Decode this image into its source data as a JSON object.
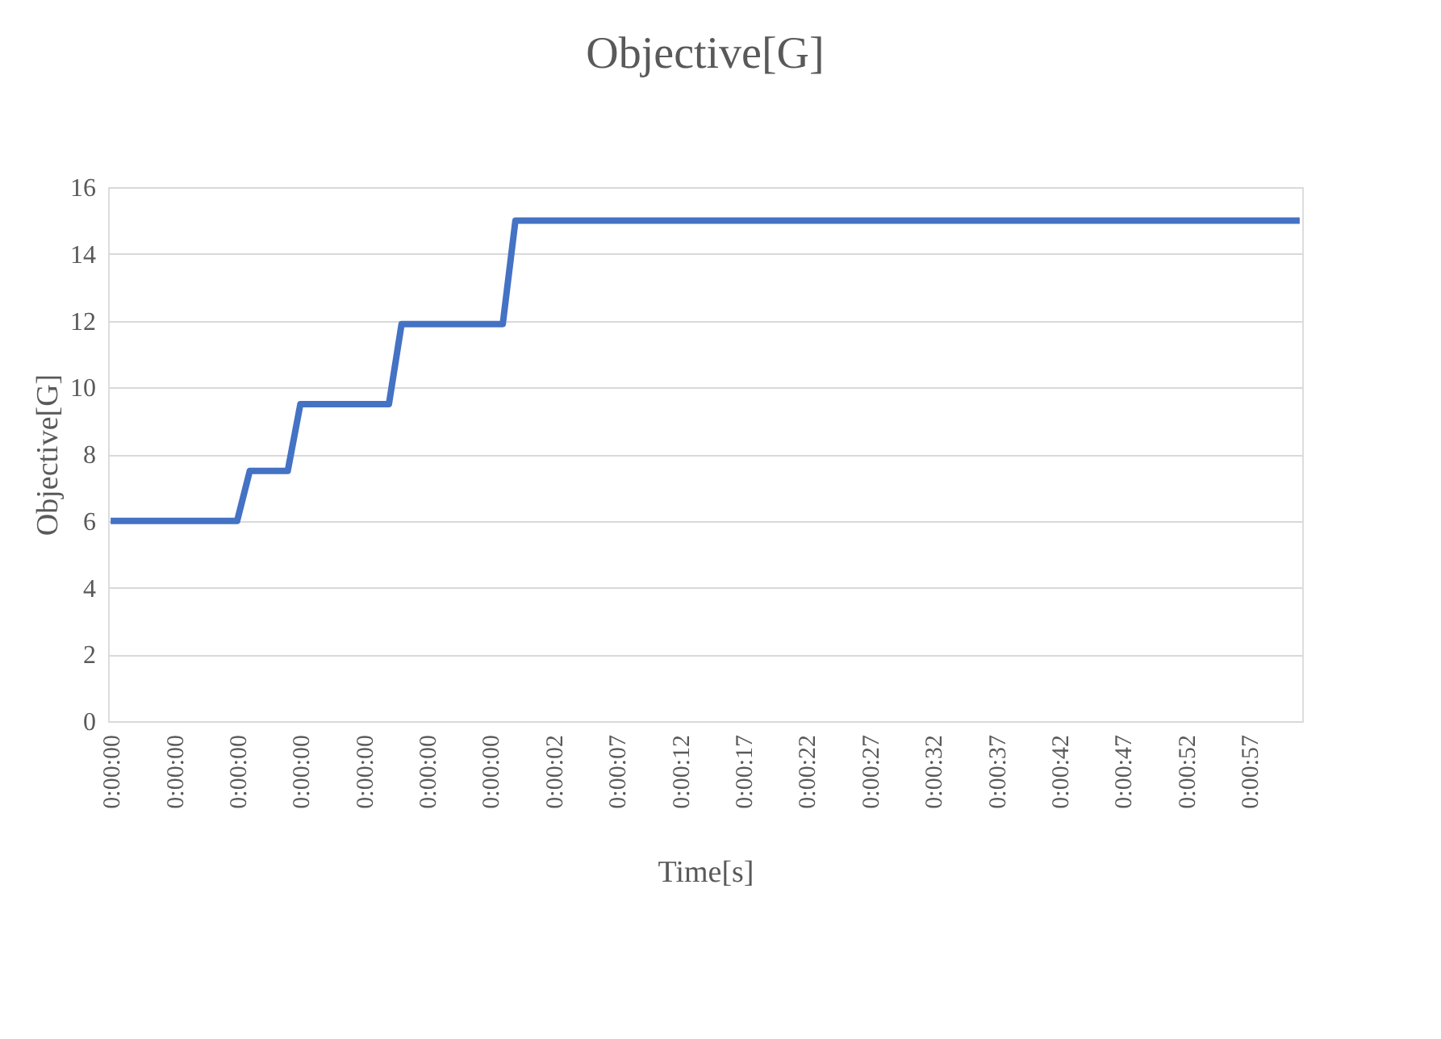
{
  "chart_data": {
    "type": "line",
    "title": "Objective[G]",
    "xlabel": "Time[s]",
    "ylabel": "Objective[G]",
    "categories": [
      "0:00:00",
      null,
      null,
      null,
      null,
      "0:00:00",
      null,
      null,
      null,
      null,
      "0:00:00",
      null,
      null,
      null,
      null,
      "0:00:00",
      null,
      null,
      null,
      null,
      "0:00:00",
      null,
      null,
      null,
      null,
      "0:00:00",
      null,
      null,
      null,
      null,
      "0:00:00",
      null,
      null,
      null,
      null,
      "0:00:02",
      null,
      null,
      null,
      null,
      "0:00:07",
      null,
      null,
      null,
      null,
      "0:00:12",
      null,
      null,
      null,
      null,
      "0:00:17",
      null,
      null,
      null,
      null,
      "0:00:22",
      null,
      null,
      null,
      null,
      "0:00:27",
      null,
      null,
      null,
      null,
      "0:00:32",
      null,
      null,
      null,
      null,
      "0:00:37",
      null,
      null,
      null,
      null,
      "0:00:42",
      null,
      null,
      null,
      null,
      "0:00:47",
      null,
      null,
      null,
      null,
      "0:00:52",
      null,
      null,
      null,
      null,
      "0:00:57",
      null,
      null,
      null,
      null
    ],
    "series": [
      {
        "color": "#4472c4",
        "values": [
          6,
          6,
          6,
          6,
          6,
          6,
          6,
          6,
          6,
          6,
          6,
          7.5,
          7.5,
          7.5,
          7.5,
          9.5,
          9.5,
          9.5,
          9.5,
          9.5,
          9.5,
          9.5,
          9.5,
          11.9,
          11.9,
          11.9,
          11.9,
          11.9,
          11.9,
          11.9,
          11.9,
          11.9,
          15,
          15,
          15,
          15,
          15,
          15,
          15,
          15,
          15,
          15,
          15,
          15,
          15,
          15,
          15,
          15,
          15,
          15,
          15,
          15,
          15,
          15,
          15,
          15,
          15,
          15,
          15,
          15,
          15,
          15,
          15,
          15,
          15,
          15,
          15,
          15,
          15,
          15,
          15,
          15,
          15,
          15,
          15,
          15,
          15,
          15,
          15,
          15,
          15,
          15,
          15,
          15,
          15,
          15,
          15,
          15,
          15,
          15,
          15,
          15,
          15,
          15,
          15
        ]
      }
    ],
    "ylim": [
      0,
      16
    ],
    "yticks": [
      0,
      2,
      4,
      6,
      8,
      10,
      12,
      14,
      16
    ],
    "grid": "y"
  }
}
